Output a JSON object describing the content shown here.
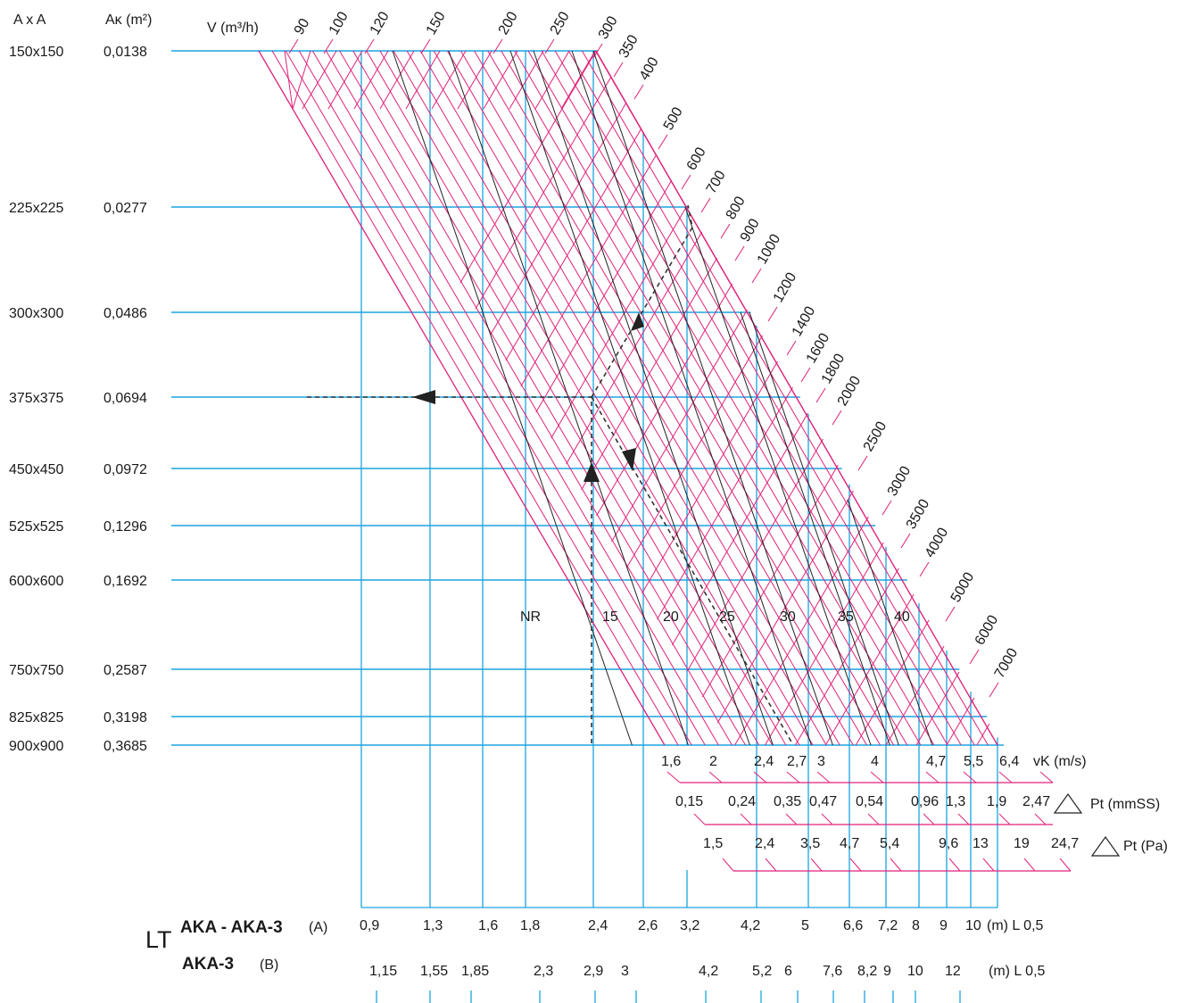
{
  "chart_data": {
    "type": "nomogram",
    "headers": {
      "size_col": "A x A",
      "area_col": "Aκ (m²)",
      "flow_col": "V (m³/h)"
    },
    "sizes": [
      {
        "size": "150x150",
        "area": "0,0138"
      },
      {
        "size": "225x225",
        "area": "0,0277"
      },
      {
        "size": "300x300",
        "area": "0,0486"
      },
      {
        "size": "375x375",
        "area": "0,0694"
      },
      {
        "size": "450x450",
        "area": "0,0972"
      },
      {
        "size": "525x525",
        "area": "0,1296"
      },
      {
        "size": "600x600",
        "area": "0,1692"
      },
      {
        "size": "750x750",
        "area": "0,2587"
      },
      {
        "size": "825x825",
        "area": "0,3198"
      },
      {
        "size": "900x900",
        "area": "0,3685"
      }
    ],
    "flow_values": [
      "90",
      "100",
      "120",
      "150",
      "200",
      "250",
      "300",
      "350",
      "400",
      "500",
      "600",
      "700",
      "800",
      "900",
      "1000",
      "1200",
      "1400",
      "1600",
      "1800",
      "2000",
      "2500",
      "3000",
      "3500",
      "4000",
      "5000",
      "6000",
      "7000"
    ],
    "nr_label": "NR",
    "nr_values": [
      "15",
      "20",
      "25",
      "30",
      "35",
      "40"
    ],
    "velocity": {
      "unit": "vK (m/s)",
      "values": [
        "1,6",
        "2",
        "2,4",
        "2,7",
        "3",
        "4",
        "4,7",
        "5,5",
        "6,4"
      ]
    },
    "pressure_mmss": {
      "unit": "Pt (mmSS)",
      "values": [
        "0,15",
        "0,24",
        "0,35",
        "0,47",
        "0,54",
        "0,96",
        "1,3",
        "1,9",
        "2,47"
      ]
    },
    "pressure_pa": {
      "unit": "Pt (Pa)",
      "values": [
        "1,5",
        "2,4",
        "3,5",
        "4,7",
        "5,4",
        "9,6",
        "13",
        "19",
        "24,7"
      ]
    },
    "throw_label": "LT",
    "throw_a": {
      "label": "AKA - AKA-3",
      "tag": "(A)",
      "unit": "(m) L 0,5",
      "values": [
        "0,9",
        "1,3",
        "1,6",
        "1,8",
        "2,4",
        "2,6",
        "3,2",
        "4,2",
        "5",
        "6,6",
        "7,2",
        "8",
        "9",
        "10"
      ]
    },
    "throw_b": {
      "label": "AKA-3",
      "tag": "(B)",
      "unit": "(m) L 0,5",
      "values": [
        "1,15",
        "1,55",
        "1,85",
        "2,3",
        "2,9",
        "3",
        "4,2",
        "5,2",
        "6",
        "7,6",
        "8,2",
        "9",
        "10",
        "12"
      ]
    },
    "colors": {
      "grid": "#1aa3e0",
      "flow_lines": "#e0227a",
      "nr_lines": "#222222",
      "example_path": "#7a1f45"
    },
    "grid": true
  }
}
